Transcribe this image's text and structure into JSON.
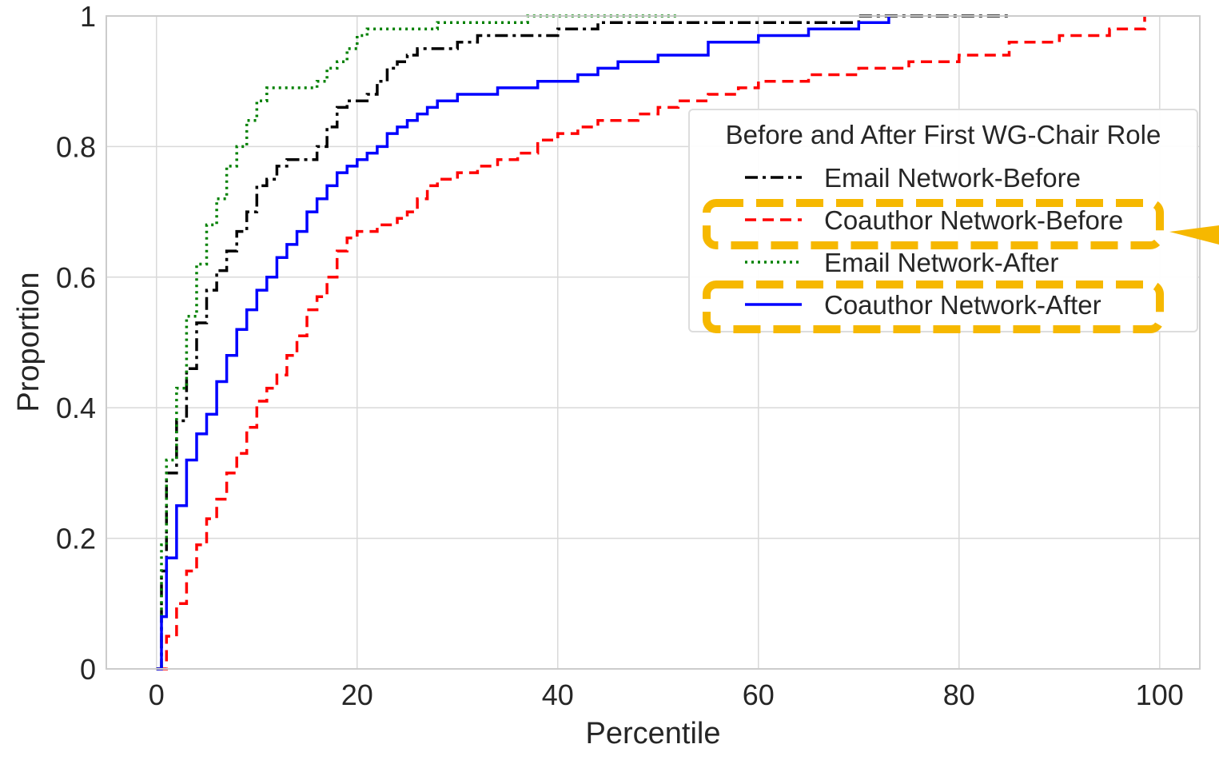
{
  "chart_data": {
    "type": "line",
    "step": true,
    "title": "",
    "xlabel": "Percentile",
    "ylabel": "Proportion",
    "xlim": [
      -5,
      104
    ],
    "ylim": [
      0,
      1
    ],
    "xticks": [
      0,
      20,
      40,
      60,
      80,
      100
    ],
    "xtick_labels": [
      "0",
      "20",
      "40",
      "60",
      "80",
      "100"
    ],
    "yticks": [
      0,
      0.2,
      0.4,
      0.6,
      0.8,
      1
    ],
    "ytick_labels": [
      "0",
      "0.2",
      "0.4",
      "0.6",
      "0.8",
      "1"
    ],
    "grid": true,
    "legend": {
      "title": "Before and After First WG-Chair Role",
      "placement": "upper-right",
      "highlighted_entries": [
        "Coauthor Network-Before",
        "Coauthor Network-After"
      ]
    },
    "series": [
      {
        "name": "Email Network-Before",
        "color": "#000000",
        "dash": "dashdot",
        "x": [
          0,
          0.5,
          1,
          2,
          3,
          4,
          5,
          6,
          7,
          8,
          9,
          10,
          11,
          12,
          13,
          14,
          15,
          16,
          17,
          18,
          19,
          20,
          21,
          22,
          23,
          24,
          25,
          26,
          28,
          30,
          32,
          34,
          36,
          38,
          40,
          42,
          44,
          46,
          50,
          55,
          60,
          70,
          85
        ],
        "y": [
          0,
          0.15,
          0.3,
          0.38,
          0.46,
          0.53,
          0.58,
          0.61,
          0.64,
          0.67,
          0.7,
          0.74,
          0.75,
          0.77,
          0.78,
          0.78,
          0.78,
          0.8,
          0.83,
          0.86,
          0.87,
          0.87,
          0.88,
          0.9,
          0.92,
          0.93,
          0.94,
          0.95,
          0.95,
          0.96,
          0.97,
          0.97,
          0.97,
          0.97,
          0.98,
          0.98,
          0.99,
          0.99,
          0.99,
          0.99,
          0.99,
          1.0,
          1.0
        ]
      },
      {
        "name": "Coauthor Network-Before",
        "color": "#ff0000",
        "dash": "dashed",
        "x": [
          0,
          1,
          2,
          3,
          4,
          5,
          6,
          7,
          8,
          9,
          10,
          11,
          12,
          13,
          14,
          15,
          16,
          17,
          18,
          19,
          20,
          22,
          24,
          25,
          26,
          27,
          28,
          30,
          32,
          34,
          36,
          38,
          40,
          42,
          44,
          46,
          48,
          50,
          52,
          55,
          58,
          60,
          65,
          70,
          75,
          80,
          85,
          90,
          95,
          98.5
        ],
        "y": [
          0,
          0.05,
          0.1,
          0.15,
          0.19,
          0.23,
          0.26,
          0.3,
          0.33,
          0.37,
          0.41,
          0.43,
          0.45,
          0.48,
          0.51,
          0.55,
          0.57,
          0.6,
          0.64,
          0.66,
          0.67,
          0.68,
          0.69,
          0.7,
          0.72,
          0.74,
          0.75,
          0.76,
          0.77,
          0.78,
          0.79,
          0.81,
          0.82,
          0.83,
          0.84,
          0.84,
          0.85,
          0.86,
          0.87,
          0.88,
          0.89,
          0.9,
          0.91,
          0.92,
          0.93,
          0.94,
          0.96,
          0.97,
          0.98,
          1.0
        ]
      },
      {
        "name": "Email Network-After",
        "color": "#008000",
        "dash": "dotted",
        "x": [
          0,
          0.5,
          1,
          2,
          3,
          4,
          5,
          6,
          7,
          8,
          9,
          10,
          11,
          12,
          13,
          14,
          15,
          16,
          17,
          18,
          19,
          20,
          21,
          22,
          24,
          28,
          32,
          37,
          52
        ],
        "y": [
          0,
          0.19,
          0.32,
          0.43,
          0.54,
          0.62,
          0.68,
          0.72,
          0.77,
          0.8,
          0.84,
          0.87,
          0.89,
          0.89,
          0.89,
          0.89,
          0.89,
          0.9,
          0.92,
          0.93,
          0.95,
          0.97,
          0.98,
          0.98,
          0.98,
          0.99,
          0.99,
          1.0,
          1.0
        ]
      },
      {
        "name": "Coauthor Network-After",
        "color": "#0000ff",
        "dash": "solid",
        "x": [
          0,
          0.5,
          1,
          2,
          3,
          4,
          5,
          6,
          7,
          8,
          9,
          10,
          11,
          12,
          13,
          14,
          15,
          16,
          17,
          18,
          19,
          20,
          21,
          22,
          23,
          24,
          25,
          26,
          27,
          28,
          29,
          30,
          32,
          34,
          36,
          38,
          40,
          42,
          44,
          46,
          48,
          50,
          55,
          60,
          65,
          70,
          73
        ],
        "y": [
          0,
          0.08,
          0.17,
          0.25,
          0.32,
          0.36,
          0.39,
          0.44,
          0.48,
          0.52,
          0.55,
          0.58,
          0.6,
          0.63,
          0.65,
          0.67,
          0.7,
          0.72,
          0.74,
          0.76,
          0.77,
          0.78,
          0.79,
          0.8,
          0.82,
          0.83,
          0.84,
          0.85,
          0.86,
          0.87,
          0.87,
          0.88,
          0.88,
          0.89,
          0.89,
          0.9,
          0.9,
          0.91,
          0.92,
          0.93,
          0.93,
          0.94,
          0.96,
          0.97,
          0.98,
          0.99,
          1.0
        ]
      }
    ]
  }
}
